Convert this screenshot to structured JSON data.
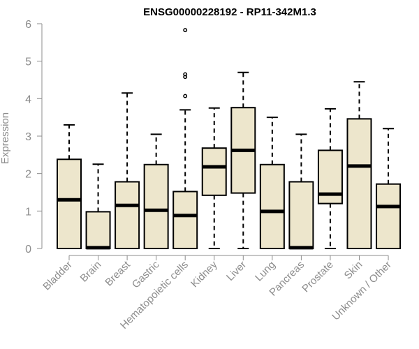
{
  "chart_data": {
    "type": "box",
    "title": "ENSG00000228192 - RP11-342M1.3",
    "xlabel": "",
    "ylabel": "Expression",
    "ylim": [
      0,
      6
    ],
    "yticks": [
      "0",
      "1",
      "2",
      "3",
      "4",
      "5",
      "6"
    ],
    "grid": false,
    "box_color": "#ede6cc",
    "line_color": "#000000",
    "categories": [
      "Bladder",
      "Brain",
      "Breast",
      "Gastric",
      "Hematopoietic cells",
      "Kidney",
      "Liver",
      "Lung",
      "Pancreas",
      "Prostate",
      "Skin",
      "Unknown / Other"
    ],
    "boxes": [
      {
        "min": 0,
        "q1": 0,
        "median": 1.3,
        "q3": 2.38,
        "max": 3.3,
        "outliers": []
      },
      {
        "min": 0,
        "q1": 0,
        "median": 0.02,
        "q3": 0.98,
        "max": 2.25,
        "outliers": []
      },
      {
        "min": 0,
        "q1": 0,
        "median": 1.15,
        "q3": 1.78,
        "max": 4.15,
        "outliers": []
      },
      {
        "min": 0,
        "q1": 0,
        "median": 1.02,
        "q3": 2.24,
        "max": 3.05,
        "outliers": []
      },
      {
        "min": 0,
        "q1": 0,
        "median": 0.88,
        "q3": 1.52,
        "max": 3.7,
        "outliers": [
          4.07,
          4.58,
          4.65,
          5.83
        ]
      },
      {
        "min": 0,
        "q1": 1.42,
        "median": 2.18,
        "q3": 2.68,
        "max": 3.75,
        "outliers": []
      },
      {
        "min": 0,
        "q1": 1.48,
        "median": 2.62,
        "q3": 3.76,
        "max": 4.7,
        "outliers": []
      },
      {
        "min": 0,
        "q1": 0,
        "median": 0.99,
        "q3": 2.24,
        "max": 3.5,
        "outliers": []
      },
      {
        "min": 0,
        "q1": 0,
        "median": 0.02,
        "q3": 1.78,
        "max": 3.05,
        "outliers": []
      },
      {
        "min": 0,
        "q1": 1.2,
        "median": 1.45,
        "q3": 2.62,
        "max": 3.73,
        "outliers": []
      },
      {
        "min": 0,
        "q1": 0,
        "median": 2.2,
        "q3": 3.46,
        "max": 4.45,
        "outliers": []
      },
      {
        "min": 0,
        "q1": 0,
        "median": 1.12,
        "q3": 1.72,
        "max": 3.2,
        "outliers": []
      }
    ]
  }
}
